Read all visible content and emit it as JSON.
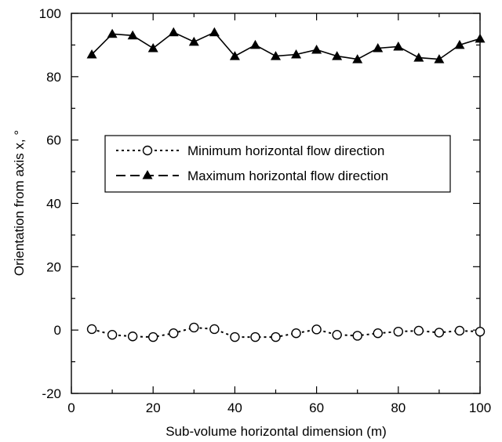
{
  "chart_data": {
    "type": "line",
    "xlabel": "Sub-volume horizontal dimension (m)",
    "ylabel": "Orientation from axis x, °",
    "xlim": [
      0,
      100
    ],
    "ylim": [
      -20,
      100
    ],
    "x_ticks": [
      "0",
      "20",
      "40",
      "60",
      "80",
      "100"
    ],
    "y_ticks": [
      "-20",
      "0",
      "20",
      "40",
      "60",
      "80",
      "100"
    ],
    "x": [
      5,
      10,
      15,
      20,
      25,
      30,
      35,
      40,
      45,
      50,
      55,
      60,
      65,
      70,
      75,
      80,
      85,
      90,
      95,
      100
    ],
    "legend_position": "center-left",
    "series": [
      {
        "name": "Minimum horizontal flow direction",
        "marker": "open-circle",
        "line": "dotted",
        "color": "#000000",
        "values": [
          0.3,
          -1.5,
          -2,
          -2.2,
          -1,
          0.8,
          0.3,
          -2.2,
          -2.2,
          -2.2,
          -1,
          0.2,
          -1.5,
          -1.8,
          -1,
          -0.5,
          -0.2,
          -0.8,
          -0.2,
          -0.5
        ]
      },
      {
        "name": "Maximum horizontal flow direction",
        "marker": "filled-triangle",
        "line": "solid",
        "color": "#000000",
        "values": [
          87,
          93.5,
          93,
          89,
          94,
          91,
          94,
          86.5,
          90,
          86.5,
          87,
          88.5,
          86.5,
          85.5,
          89,
          89.5,
          86,
          85.5,
          90,
          92
        ]
      }
    ]
  }
}
